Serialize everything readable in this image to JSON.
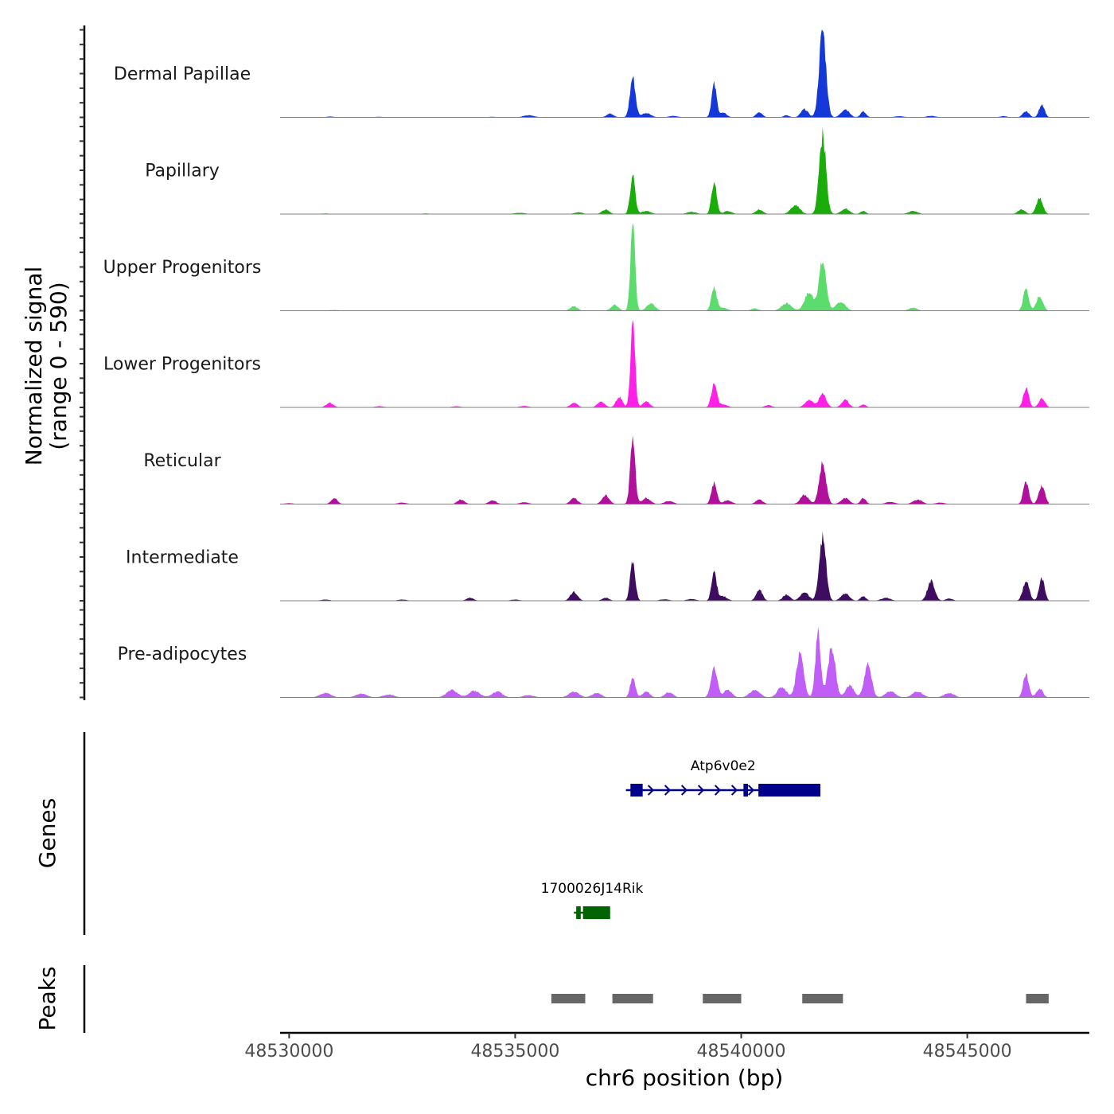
{
  "chart_data": {
    "type": "area",
    "title": "",
    "xlabel": "chr6 position (bp)",
    "ylabel_line1": "Normalized signal",
    "ylabel_line2": "(range 0 - 590)",
    "ylim": [
      0,
      590
    ],
    "xlim": [
      48529800,
      48547700
    ],
    "x_ticks": [
      48530000,
      48535000,
      48540000,
      48545000
    ],
    "x_tick_labels": [
      "48530000",
      "48535000",
      "48540000",
      "48545000"
    ],
    "signal_start": 48529800,
    "signal_end": 48546800,
    "tracks": [
      {
        "name": "Dermal Papillae",
        "color": "#1538d8",
        "peaks": [
          [
            48530900,
            6,
            80
          ],
          [
            48532000,
            4,
            100
          ],
          [
            48534500,
            4,
            100
          ],
          [
            48535300,
            14,
            120
          ],
          [
            48537100,
            25,
            80
          ],
          [
            48537600,
            270,
            60
          ],
          [
            48537900,
            30,
            100
          ],
          [
            48538500,
            10,
            100
          ],
          [
            48539400,
            220,
            55
          ],
          [
            48539600,
            30,
            80
          ],
          [
            48540400,
            35,
            70
          ],
          [
            48541000,
            15,
            60
          ],
          [
            48541400,
            55,
            80
          ],
          [
            48541800,
            590,
            75
          ],
          [
            48542300,
            55,
            90
          ],
          [
            48542700,
            40,
            60
          ],
          [
            48543500,
            8,
            100
          ],
          [
            48544200,
            10,
            100
          ],
          [
            48545800,
            8,
            80
          ],
          [
            48546300,
            40,
            70
          ],
          [
            48546650,
            90,
            60
          ]
        ]
      },
      {
        "name": "Papillary",
        "color": "#19ac0a",
        "peaks": [
          [
            48530800,
            4,
            100
          ],
          [
            48533000,
            4,
            100
          ],
          [
            48535100,
            8,
            120
          ],
          [
            48536400,
            12,
            90
          ],
          [
            48537000,
            30,
            80
          ],
          [
            48537600,
            260,
            55
          ],
          [
            48537900,
            20,
            100
          ],
          [
            48538900,
            15,
            100
          ],
          [
            48539400,
            220,
            55
          ],
          [
            48539700,
            20,
            90
          ],
          [
            48540400,
            30,
            80
          ],
          [
            48541200,
            60,
            100
          ],
          [
            48541800,
            530,
            75
          ],
          [
            48542300,
            35,
            90
          ],
          [
            48542700,
            20,
            60
          ],
          [
            48543800,
            20,
            100
          ],
          [
            48546200,
            30,
            80
          ],
          [
            48546600,
            110,
            70
          ]
        ]
      },
      {
        "name": "Upper Progenitors",
        "color": "#5cdc6c",
        "peaks": [
          [
            48531000,
            5,
            100
          ],
          [
            48536300,
            30,
            80
          ],
          [
            48537200,
            40,
            80
          ],
          [
            48537600,
            590,
            50
          ],
          [
            48538000,
            50,
            90
          ],
          [
            48539400,
            150,
            60
          ],
          [
            48539600,
            20,
            90
          ],
          [
            48540300,
            15,
            80
          ],
          [
            48541000,
            50,
            110
          ],
          [
            48541500,
            120,
            100
          ],
          [
            48541800,
            330,
            80
          ],
          [
            48542200,
            60,
            100
          ],
          [
            48543800,
            20,
            90
          ],
          [
            48546300,
            150,
            60
          ],
          [
            48546600,
            100,
            70
          ]
        ]
      },
      {
        "name": "Lower Progenitors",
        "color": "#ff20e8",
        "peaks": [
          [
            48530900,
            30,
            80
          ],
          [
            48532000,
            8,
            100
          ],
          [
            48533700,
            8,
            100
          ],
          [
            48535200,
            10,
            100
          ],
          [
            48536300,
            30,
            80
          ],
          [
            48536900,
            40,
            80
          ],
          [
            48537300,
            70,
            70
          ],
          [
            48537600,
            590,
            50
          ],
          [
            48537900,
            40,
            80
          ],
          [
            48539400,
            160,
            60
          ],
          [
            48539600,
            20,
            90
          ],
          [
            48540600,
            15,
            80
          ],
          [
            48541500,
            50,
            90
          ],
          [
            48541800,
            90,
            80
          ],
          [
            48542300,
            50,
            80
          ],
          [
            48542700,
            20,
            60
          ],
          [
            48546300,
            130,
            60
          ],
          [
            48546650,
            60,
            70
          ]
        ]
      },
      {
        "name": "Reticular",
        "color": "#b0109c",
        "peaks": [
          [
            48530000,
            6,
            100
          ],
          [
            48531000,
            40,
            70
          ],
          [
            48532500,
            10,
            100
          ],
          [
            48533800,
            30,
            80
          ],
          [
            48534500,
            25,
            80
          ],
          [
            48535200,
            12,
            100
          ],
          [
            48536300,
            40,
            80
          ],
          [
            48537000,
            60,
            80
          ],
          [
            48537600,
            420,
            55
          ],
          [
            48537900,
            40,
            90
          ],
          [
            48538400,
            20,
            100
          ],
          [
            48539400,
            140,
            60
          ],
          [
            48539700,
            25,
            90
          ],
          [
            48540400,
            30,
            80
          ],
          [
            48541400,
            60,
            90
          ],
          [
            48541800,
            280,
            75
          ],
          [
            48542300,
            40,
            90
          ],
          [
            48542700,
            40,
            60
          ],
          [
            48543300,
            15,
            100
          ],
          [
            48543900,
            30,
            100
          ],
          [
            48544400,
            10,
            100
          ],
          [
            48546300,
            150,
            60
          ],
          [
            48546650,
            120,
            70
          ]
        ]
      },
      {
        "name": "Intermediate",
        "color": "#3e0c60",
        "peaks": [
          [
            48530800,
            8,
            100
          ],
          [
            48532500,
            8,
            100
          ],
          [
            48534000,
            20,
            80
          ],
          [
            48535000,
            8,
            100
          ],
          [
            48536300,
            60,
            80
          ],
          [
            48537000,
            20,
            80
          ],
          [
            48537600,
            280,
            55
          ],
          [
            48538300,
            10,
            100
          ],
          [
            48538900,
            12,
            100
          ],
          [
            48539400,
            200,
            55
          ],
          [
            48539600,
            30,
            90
          ],
          [
            48540400,
            75,
            70
          ],
          [
            48541000,
            40,
            80
          ],
          [
            48541400,
            60,
            90
          ],
          [
            48541800,
            430,
            75
          ],
          [
            48542300,
            50,
            90
          ],
          [
            48542700,
            30,
            60
          ],
          [
            48543200,
            20,
            100
          ],
          [
            48544200,
            130,
            80
          ],
          [
            48544600,
            15,
            80
          ],
          [
            48546300,
            130,
            70
          ],
          [
            48546650,
            150,
            60
          ]
        ]
      },
      {
        "name": "Pre-adipocytes",
        "color": "#c25ef8",
        "peaks": [
          [
            48530800,
            30,
            120
          ],
          [
            48531600,
            25,
            120
          ],
          [
            48532200,
            20,
            120
          ],
          [
            48533600,
            50,
            120
          ],
          [
            48534100,
            45,
            120
          ],
          [
            48534600,
            40,
            110
          ],
          [
            48535300,
            15,
            120
          ],
          [
            48536300,
            40,
            110
          ],
          [
            48536800,
            30,
            100
          ],
          [
            48537600,
            140,
            55
          ],
          [
            48537900,
            40,
            80
          ],
          [
            48538400,
            35,
            90
          ],
          [
            48539400,
            190,
            70
          ],
          [
            48539700,
            50,
            90
          ],
          [
            48540300,
            50,
            110
          ],
          [
            48540900,
            70,
            100
          ],
          [
            48541300,
            300,
            80
          ],
          [
            48541700,
            430,
            60
          ],
          [
            48542000,
            350,
            80
          ],
          [
            48542400,
            80,
            90
          ],
          [
            48542800,
            220,
            80
          ],
          [
            48543300,
            40,
            110
          ],
          [
            48543900,
            40,
            110
          ],
          [
            48544600,
            30,
            110
          ],
          [
            48546300,
            160,
            60
          ],
          [
            48546600,
            60,
            70
          ]
        ]
      }
    ],
    "genes": [
      {
        "name": "Atp6v0e2",
        "strand": "+",
        "color": "#00008b",
        "start": 48537450,
        "end": 48541750,
        "exons": [
          [
            48537550,
            48537820
          ],
          [
            48540050,
            48540150
          ],
          [
            48540380,
            48541750
          ]
        ]
      },
      {
        "name": "1700026J14Rik",
        "strand": "",
        "color": "#006400",
        "start": 48536300,
        "end": 48537100,
        "exons": [
          [
            48536350,
            48536450
          ],
          [
            48536500,
            48537100
          ]
        ]
      }
    ],
    "peaks_track": [
      [
        48535800,
        48536550
      ],
      [
        48537150,
        48538050
      ],
      [
        48539150,
        48540000
      ],
      [
        48541350,
        48542250
      ],
      [
        48546300,
        48546800
      ]
    ],
    "panel_labels": {
      "genes": "Genes",
      "peaks": "Peaks"
    }
  }
}
